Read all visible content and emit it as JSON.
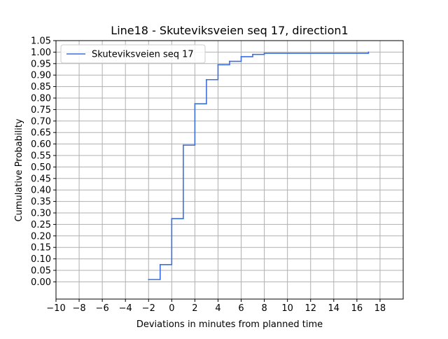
{
  "chart_data": {
    "type": "line",
    "step": "post",
    "title": "Line18 - Skuteviksveien seq 17, direction1",
    "xlabel": "Deviations in minutes from planned time",
    "ylabel": "Cumulative Probability",
    "xlim": [
      -10,
      20
    ],
    "ylim": [
      -0.075,
      1.05
    ],
    "xticks": [
      -10,
      -8,
      -6,
      -4,
      -2,
      0,
      2,
      4,
      6,
      8,
      10,
      12,
      14,
      16,
      18
    ],
    "xtick_labels": [
      "−10",
      "−8",
      "−6",
      "−4",
      "−2",
      "0",
      "2",
      "4",
      "6",
      "8",
      "10",
      "12",
      "14",
      "16",
      "18"
    ],
    "yticks": [
      0.0,
      0.05,
      0.1,
      0.15,
      0.2,
      0.25,
      0.3,
      0.35,
      0.4,
      0.45,
      0.5,
      0.55,
      0.6,
      0.65,
      0.7,
      0.75,
      0.8,
      0.85,
      0.9,
      0.95,
      1.0,
      1.05
    ],
    "ytick_labels": [
      "0.00",
      "0.05",
      "0.10",
      "0.15",
      "0.20",
      "0.25",
      "0.30",
      "0.35",
      "0.40",
      "0.45",
      "0.50",
      "0.55",
      "0.60",
      "0.65",
      "0.70",
      "0.75",
      "0.80",
      "0.85",
      "0.90",
      "0.95",
      "1.00",
      "1.05"
    ],
    "grid": true,
    "legend_position": "top-left",
    "series": [
      {
        "name": "Skuteviksveien seq 17",
        "color": "#3b6fe0",
        "x": [
          -2,
          -1,
          0,
          1,
          2,
          3,
          4,
          5,
          6,
          7,
          8,
          17
        ],
        "y": [
          0.01,
          0.075,
          0.275,
          0.595,
          0.775,
          0.88,
          0.945,
          0.96,
          0.98,
          0.99,
          0.995,
          1.0
        ]
      }
    ]
  }
}
